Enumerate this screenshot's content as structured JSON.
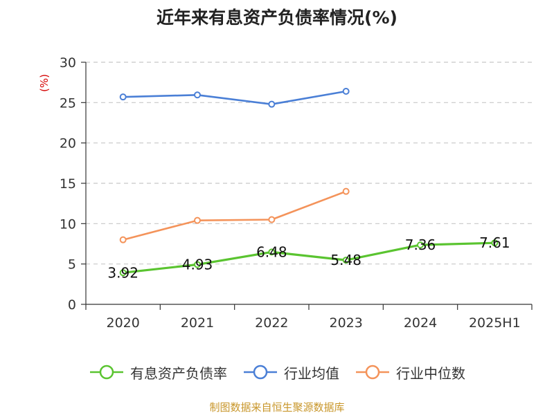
{
  "chart_data": {
    "type": "line",
    "title": "近年来有息资产负债率情况(%)",
    "ylabel": "(%)",
    "categories": [
      "2020",
      "2021",
      "2022",
      "2023",
      "2024",
      "2025H1"
    ],
    "ylim": [
      0,
      30
    ],
    "yticks": [
      0,
      5,
      10,
      15,
      20,
      25,
      30
    ],
    "grid": true,
    "legend_position": "bottom",
    "series": [
      {
        "name": "有息资产负债率",
        "color": "#5ac430",
        "values": [
          3.92,
          4.93,
          6.48,
          5.48,
          7.36,
          7.61
        ],
        "labels": [
          "3.92",
          "4.93",
          "6.48",
          "5.48",
          "7.36",
          "7.61"
        ]
      },
      {
        "name": "行业均值",
        "color": "#4a7fd6",
        "values": [
          25.7,
          25.95,
          24.8,
          26.4,
          null,
          null
        ]
      },
      {
        "name": "行业中位数",
        "color": "#f4935a",
        "values": [
          8.0,
          10.4,
          10.5,
          14.0,
          null,
          null
        ]
      }
    ]
  },
  "source": "制图数据来自恒生聚源数据库"
}
